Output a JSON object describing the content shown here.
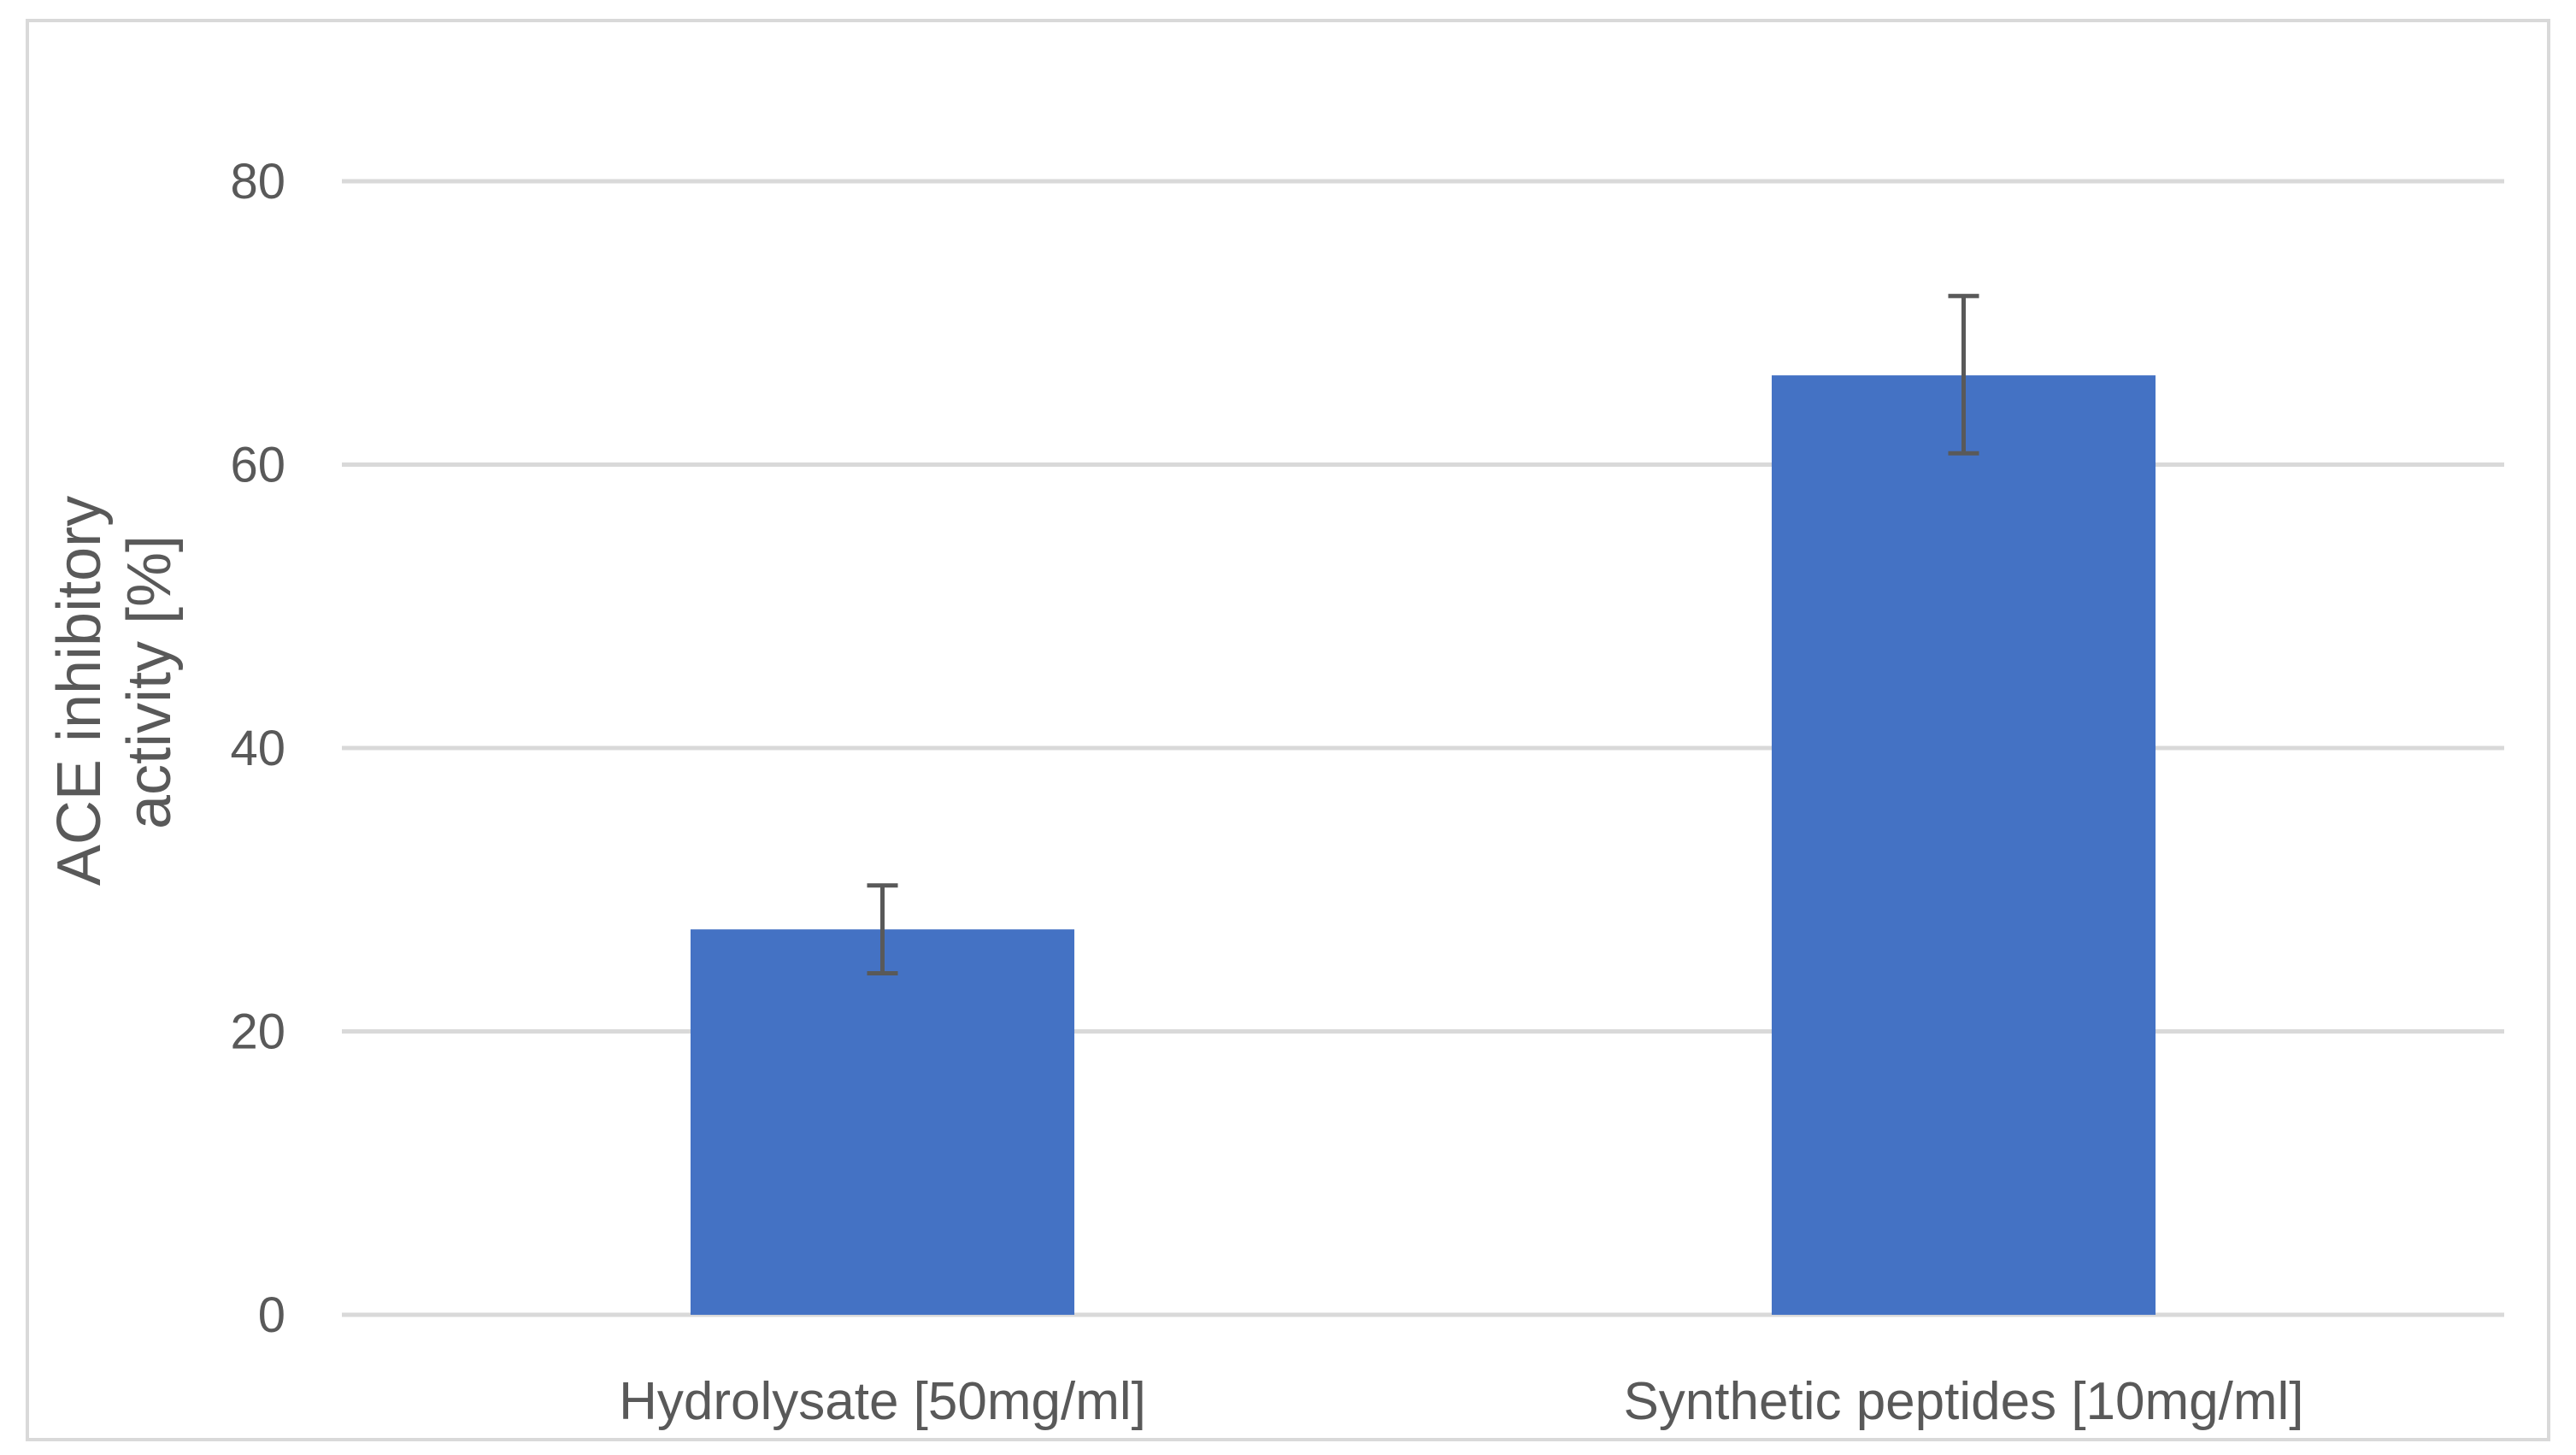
{
  "chart_data": {
    "type": "bar",
    "title": "",
    "xlabel": "",
    "ylabel_lines": [
      "ACE inhibitory",
      "activity [%]"
    ],
    "ylim": [
      0,
      80
    ],
    "yticks": [
      0,
      20,
      40,
      60,
      80
    ],
    "grid": true,
    "categories": [
      "Hydrolysate [50mg/ml]",
      "Synthetic peptides [10mg/ml]"
    ],
    "series": [
      {
        "values": [
          27.2,
          66.3
        ],
        "error_low": [
          24.1,
          60.8
        ],
        "error_high": [
          30.3,
          71.9
        ],
        "color": "#4472C4"
      }
    ],
    "colors": {
      "grid": "#D9D9D9",
      "text": "#595959",
      "error_bar": "#595959",
      "border": "#D9D9D9"
    }
  }
}
